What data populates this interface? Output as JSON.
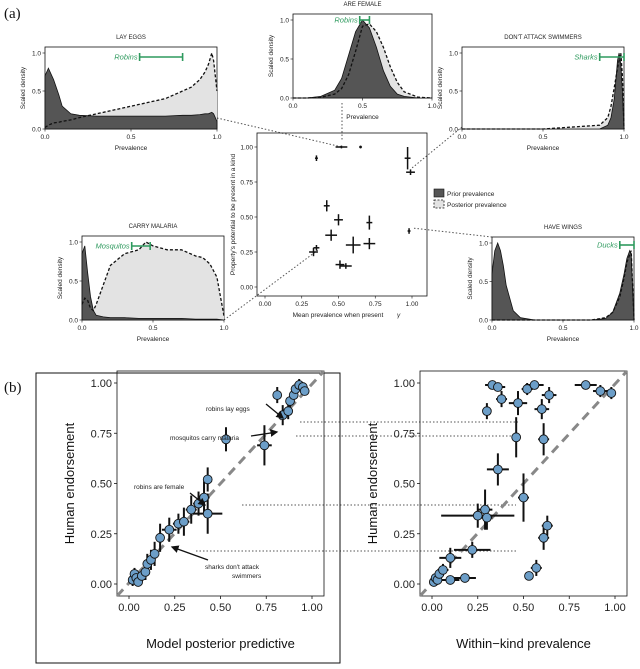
{
  "panel_labels": {
    "a": "(a)",
    "b": "(b)"
  },
  "density_common": {
    "ylabel": "Scaled density",
    "xlabel": "Prevalence",
    "xticks": [
      "0.0",
      "0.5",
      "1.0"
    ],
    "yticks": [
      "0.0",
      "0.5",
      "1.0"
    ]
  },
  "center_scatter": {
    "ylabel": "Property's potential to be present in a kind",
    "xlabel": "Mean prevalence when present",
    "xlabel_symbol": "γ",
    "xticks": [
      "0.00",
      "0.25",
      "0.50",
      "0.75",
      "1.00"
    ],
    "yticks": [
      "0.00",
      "0.25",
      "0.50",
      "0.75",
      "1.00"
    ],
    "legend": {
      "prior": "Prior prevalence",
      "posterior": "Posterior prevalence"
    }
  },
  "scatter_b": {
    "ylabel": "Human endorsement",
    "xticks": [
      "0.00",
      "0.25",
      "0.50",
      "0.75",
      "1.00"
    ],
    "yticks": [
      "0.00",
      "0.25",
      "0.50",
      "0.75",
      "1.00"
    ],
    "left_xlabel": "Model posterior predictive",
    "right_xlabel": "Within−kind prevalence"
  },
  "annotations": {
    "robins_lay_eggs": "robins lay eggs",
    "mosquitos_carry_malaria": "mosquitos carry malaria",
    "robins_are_female": "robins are female",
    "sharks_line1": "sharks don't attack",
    "sharks_line2": "swimmers"
  },
  "chart_data": [
    {
      "type": "area",
      "id": "lay-eggs",
      "title": "LAY EGGS",
      "kind": "Robins",
      "kind_interval": [
        0.55,
        0.8
      ],
      "x": [
        0,
        0.02,
        0.05,
        0.08,
        0.1,
        0.15,
        0.2,
        0.3,
        0.4,
        0.5,
        0.6,
        0.7,
        0.8,
        0.85,
        0.9,
        0.93,
        0.95,
        0.97,
        0.98,
        1.0
      ],
      "prior": [
        0.7,
        0.8,
        0.65,
        0.45,
        0.3,
        0.2,
        0.18,
        0.17,
        0.17,
        0.17,
        0.17,
        0.17,
        0.18,
        0.18,
        0.19,
        0.2,
        0.2,
        0.22,
        0.2,
        0.1
      ],
      "posterior": [
        0.02,
        0.05,
        0.08,
        0.09,
        0.1,
        0.12,
        0.15,
        0.2,
        0.25,
        0.3,
        0.35,
        0.4,
        0.5,
        0.55,
        0.65,
        0.75,
        0.85,
        1.0,
        0.9,
        0.5
      ]
    },
    {
      "type": "area",
      "id": "are-female",
      "title": "ARE FEMALE",
      "kind": "Robins",
      "kind_interval": [
        0.48,
        0.55
      ],
      "x": [
        0,
        0.1,
        0.2,
        0.3,
        0.35,
        0.4,
        0.45,
        0.5,
        0.55,
        0.6,
        0.65,
        0.7,
        0.75,
        0.8,
        0.9,
        1.0
      ],
      "prior": [
        0,
        0,
        0.02,
        0.1,
        0.25,
        0.55,
        0.85,
        1.0,
        0.9,
        0.65,
        0.35,
        0.15,
        0.05,
        0.02,
        0,
        0
      ],
      "posterior": [
        0,
        0,
        0.01,
        0.05,
        0.12,
        0.3,
        0.6,
        0.92,
        0.95,
        0.85,
        0.65,
        0.4,
        0.2,
        0.08,
        0.01,
        0
      ]
    },
    {
      "type": "area",
      "id": "dont-attack-swimmers",
      "title": "DON'T ATTACK SWIMMERS",
      "kind": "Sharks",
      "kind_interval": [
        0.85,
        1.0
      ],
      "x": [
        0,
        0.5,
        0.85,
        0.9,
        0.92,
        0.94,
        0.96,
        0.97,
        0.98,
        0.99,
        1.0
      ],
      "prior": [
        0,
        0,
        0,
        0.05,
        0.15,
        0.4,
        0.9,
        1.0,
        0.85,
        0.5,
        0
      ],
      "posterior": [
        0,
        0,
        0.05,
        0.15,
        0.3,
        0.55,
        0.8,
        0.9,
        1.0,
        0.7,
        0
      ]
    },
    {
      "type": "area",
      "id": "carry-malaria",
      "title": "CARRY MALARIA",
      "kind": "Mosquitos",
      "kind_interval": [
        0.35,
        0.48
      ],
      "x": [
        0,
        0.02,
        0.04,
        0.06,
        0.08,
        0.1,
        0.15,
        0.2,
        0.3,
        0.4,
        0.45,
        0.5,
        0.6,
        0.7,
        0.8,
        0.85,
        0.9,
        0.95,
        1.0
      ],
      "prior": [
        0.85,
        0.95,
        0.6,
        0.3,
        0.12,
        0.06,
        0.04,
        0.03,
        0.03,
        0.02,
        0.02,
        0.02,
        0.02,
        0.02,
        0.01,
        0.01,
        0.01,
        0.01,
        0
      ],
      "posterior": [
        0.2,
        0.28,
        0.25,
        0.15,
        0.12,
        0.2,
        0.45,
        0.7,
        0.85,
        0.9,
        1.0,
        0.95,
        0.9,
        0.9,
        0.82,
        0.8,
        0.72,
        0.55,
        0.05
      ]
    },
    {
      "type": "area",
      "id": "have-wings",
      "title": "HAVE WINGS",
      "kind": "Ducks",
      "kind_interval": [
        0.9,
        1.0
      ],
      "x": [
        0,
        0.02,
        0.04,
        0.06,
        0.08,
        0.1,
        0.15,
        0.2,
        0.3,
        0.5,
        0.7,
        0.8,
        0.85,
        0.9,
        0.93,
        0.95,
        0.97,
        0.98,
        1.0
      ],
      "prior": [
        0.6,
        0.9,
        1.0,
        0.9,
        0.7,
        0.45,
        0.12,
        0.03,
        0,
        0,
        0,
        0.02,
        0.1,
        0.35,
        0.6,
        0.8,
        0.9,
        0.85,
        0
      ],
      "posterior": [
        0,
        0,
        0,
        0,
        0,
        0,
        0,
        0,
        0,
        0,
        0,
        0.03,
        0.1,
        0.3,
        0.55,
        0.75,
        0.85,
        0.9,
        0
      ]
    },
    {
      "type": "scatter",
      "id": "center-scatter",
      "xlim": [
        0,
        1
      ],
      "ylim": [
        0,
        1
      ],
      "points": [
        {
          "x": 0.35,
          "y": 0.92,
          "ex": 0.01,
          "ey": 0.02
        },
        {
          "x": 0.52,
          "y": 1.0,
          "ex": 0.04,
          "ey": 0.01
        },
        {
          "x": 0.65,
          "y": 1.0,
          "ex": 0.01,
          "ey": 0.01
        },
        {
          "x": 0.97,
          "y": 0.92,
          "ex": 0.02,
          "ey": 0.08
        },
        {
          "x": 0.99,
          "y": 0.82,
          "ex": 0.03,
          "ey": 0.02
        },
        {
          "x": 0.42,
          "y": 0.58,
          "ex": 0.02,
          "ey": 0.04
        },
        {
          "x": 0.5,
          "y": 0.48,
          "ex": 0.03,
          "ey": 0.04
        },
        {
          "x": 0.45,
          "y": 0.37,
          "ex": 0.04,
          "ey": 0.04
        },
        {
          "x": 0.71,
          "y": 0.46,
          "ex": 0.02,
          "ey": 0.05
        },
        {
          "x": 0.71,
          "y": 0.31,
          "ex": 0.04,
          "ey": 0.04
        },
        {
          "x": 0.6,
          "y": 0.3,
          "ex": 0.05,
          "ey": 0.06
        },
        {
          "x": 0.98,
          "y": 0.4,
          "ex": 0.01,
          "ey": 0.02
        },
        {
          "x": 0.35,
          "y": 0.28,
          "ex": 0.02,
          "ey": 0.02
        },
        {
          "x": 0.33,
          "y": 0.25,
          "ex": 0.03,
          "ey": 0.03
        },
        {
          "x": 0.51,
          "y": 0.16,
          "ex": 0.03,
          "ey": 0.03
        },
        {
          "x": 0.55,
          "y": 0.15,
          "ex": 0.04,
          "ey": 0.02
        }
      ]
    },
    {
      "type": "scatter",
      "id": "model-scatter",
      "xlabel": "Model posterior predictive",
      "ylabel": "Human endorsement",
      "xlim": [
        0,
        1
      ],
      "ylim": [
        0,
        1
      ],
      "points": [
        {
          "x": 0.02,
          "y": 0.02,
          "ex": 0.01,
          "ey": 0.03
        },
        {
          "x": 0.03,
          "y": 0.05,
          "ex": 0.01,
          "ey": 0.03
        },
        {
          "x": 0.04,
          "y": 0.03,
          "ex": 0.01,
          "ey": 0.02
        },
        {
          "x": 0.05,
          "y": 0.01,
          "ex": 0.01,
          "ey": 0.02
        },
        {
          "x": 0.07,
          "y": 0.04,
          "ex": 0.02,
          "ey": 0.03
        },
        {
          "x": 0.09,
          "y": 0.06,
          "ex": 0.02,
          "ey": 0.04
        },
        {
          "x": 0.1,
          "y": 0.1,
          "ex": 0.02,
          "ey": 0.05
        },
        {
          "x": 0.12,
          "y": 0.12,
          "ex": 0.02,
          "ey": 0.05
        },
        {
          "x": 0.14,
          "y": 0.15,
          "ex": 0.02,
          "ey": 0.06
        },
        {
          "x": 0.17,
          "y": 0.23,
          "ex": 0.02,
          "ey": 0.07
        },
        {
          "x": 0.22,
          "y": 0.27,
          "ex": 0.04,
          "ey": 0.06
        },
        {
          "x": 0.27,
          "y": 0.3,
          "ex": 0.03,
          "ey": 0.05
        },
        {
          "x": 0.3,
          "y": 0.31,
          "ex": 0.03,
          "ey": 0.07
        },
        {
          "x": 0.34,
          "y": 0.37,
          "ex": 0.03,
          "ey": 0.07
        },
        {
          "x": 0.38,
          "y": 0.4,
          "ex": 0.03,
          "ey": 0.06
        },
        {
          "x": 0.41,
          "y": 0.43,
          "ex": 0.03,
          "ey": 0.08
        },
        {
          "x": 0.43,
          "y": 0.35,
          "ex": 0.08,
          "ey": 0.1
        },
        {
          "x": 0.43,
          "y": 0.52,
          "ex": 0.02,
          "ey": 0.06
        },
        {
          "x": 0.53,
          "y": 0.72,
          "ex": 0.02,
          "ey": 0.06
        },
        {
          "x": 0.74,
          "y": 0.69,
          "ex": 0.04,
          "ey": 0.1
        },
        {
          "x": 0.81,
          "y": 0.94,
          "ex": 0.02,
          "ey": 0.04
        },
        {
          "x": 0.84,
          "y": 0.84,
          "ex": 0.03,
          "ey": 0.05
        },
        {
          "x": 0.87,
          "y": 0.86,
          "ex": 0.02,
          "ey": 0.04
        },
        {
          "x": 0.88,
          "y": 0.91,
          "ex": 0.02,
          "ey": 0.03
        },
        {
          "x": 0.9,
          "y": 0.94,
          "ex": 0.02,
          "ey": 0.03
        },
        {
          "x": 0.91,
          "y": 0.97,
          "ex": 0.02,
          "ey": 0.03
        },
        {
          "x": 0.93,
          "y": 0.99,
          "ex": 0.02,
          "ey": 0.03
        },
        {
          "x": 0.95,
          "y": 0.98,
          "ex": 0.01,
          "ey": 0.02
        },
        {
          "x": 0.96,
          "y": 0.96,
          "ex": 0.01,
          "ey": 0.02
        }
      ]
    },
    {
      "type": "scatter",
      "id": "prevalence-scatter",
      "xlabel": "Within−kind prevalence",
      "ylabel": "Human endorsement",
      "xlim": [
        0,
        1
      ],
      "ylim": [
        0,
        1
      ],
      "points": [
        {
          "x": 0.01,
          "y": 0.01,
          "ex": 0.01,
          "ey": 0.02
        },
        {
          "x": 0.02,
          "y": 0.03,
          "ex": 0.01,
          "ey": 0.02
        },
        {
          "x": 0.03,
          "y": 0.02,
          "ex": 0.01,
          "ey": 0.02
        },
        {
          "x": 0.04,
          "y": 0.05,
          "ex": 0.02,
          "ey": 0.03
        },
        {
          "x": 0.06,
          "y": 0.07,
          "ex": 0.03,
          "ey": 0.03
        },
        {
          "x": 0.1,
          "y": 0.13,
          "ex": 0.06,
          "ey": 0.05
        },
        {
          "x": 0.1,
          "y": 0.02,
          "ex": 0.05,
          "ey": 0.02
        },
        {
          "x": 0.18,
          "y": 0.03,
          "ex": 0.06,
          "ey": 0.02
        },
        {
          "x": 0.22,
          "y": 0.17,
          "ex": 0.1,
          "ey": 0.04
        },
        {
          "x": 0.25,
          "y": 0.34,
          "ex": 0.2,
          "ey": 0.06
        },
        {
          "x": 0.29,
          "y": 0.37,
          "ex": 0.04,
          "ey": 0.1
        },
        {
          "x": 0.3,
          "y": 0.33,
          "ex": 0.03,
          "ey": 0.06
        },
        {
          "x": 0.3,
          "y": 0.86,
          "ex": 0.02,
          "ey": 0.04
        },
        {
          "x": 0.33,
          "y": 0.99,
          "ex": 0.04,
          "ey": 0.02
        },
        {
          "x": 0.36,
          "y": 0.98,
          "ex": 0.04,
          "ey": 0.02
        },
        {
          "x": 0.38,
          "y": 0.92,
          "ex": 0.03,
          "ey": 0.04
        },
        {
          "x": 0.36,
          "y": 0.57,
          "ex": 0.06,
          "ey": 0.08
        },
        {
          "x": 0.46,
          "y": 0.73,
          "ex": 0.02,
          "ey": 0.1
        },
        {
          "x": 0.47,
          "y": 0.9,
          "ex": 0.05,
          "ey": 0.06
        },
        {
          "x": 0.5,
          "y": 0.43,
          "ex": 0.03,
          "ey": 0.12
        },
        {
          "x": 0.52,
          "y": 0.97,
          "ex": 0.03,
          "ey": 0.03
        },
        {
          "x": 0.53,
          "y": 0.04,
          "ex": 0.02,
          "ey": 0.02
        },
        {
          "x": 0.56,
          "y": 0.99,
          "ex": 0.05,
          "ey": 0.02
        },
        {
          "x": 0.57,
          "y": 0.08,
          "ex": 0.03,
          "ey": 0.04
        },
        {
          "x": 0.6,
          "y": 0.87,
          "ex": 0.04,
          "ey": 0.05
        },
        {
          "x": 0.61,
          "y": 0.23,
          "ex": 0.03,
          "ey": 0.06
        },
        {
          "x": 0.61,
          "y": 0.72,
          "ex": 0.03,
          "ey": 0.08
        },
        {
          "x": 0.63,
          "y": 0.29,
          "ex": 0.03,
          "ey": 0.05
        },
        {
          "x": 0.64,
          "y": 0.94,
          "ex": 0.04,
          "ey": 0.04
        },
        {
          "x": 0.84,
          "y": 0.99,
          "ex": 0.06,
          "ey": 0.02
        },
        {
          "x": 0.92,
          "y": 0.96,
          "ex": 0.04,
          "ey": 0.03
        },
        {
          "x": 0.98,
          "y": 0.95,
          "ex": 0.02,
          "ey": 0.03
        }
      ]
    }
  ]
}
